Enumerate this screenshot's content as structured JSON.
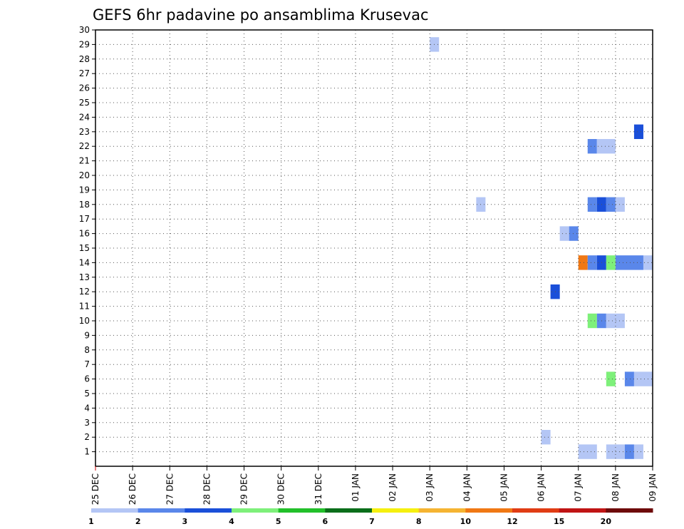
{
  "chart_data": {
    "type": "heatmap",
    "title": "GEFS 6hr padavine po ansamblima Krusevac",
    "xlabel": "",
    "ylabel": "",
    "x_tick_labels": [
      "25 DEC",
      "26 DEC",
      "27 DEC",
      "28 DEC",
      "29 DEC",
      "30 DEC",
      "31 DEC",
      "01 JAN",
      "02 JAN",
      "03 JAN",
      "04 JAN",
      "05 JAN",
      "06 JAN",
      "07 JAN",
      "08 JAN",
      "09 JAN"
    ],
    "y_tick_labels": [
      "1",
      "2",
      "3",
      "4",
      "5",
      "6",
      "7",
      "8",
      "9",
      "10",
      "11",
      "12",
      "13",
      "14",
      "15",
      "16",
      "17",
      "18",
      "19",
      "20",
      "21",
      "22",
      "23",
      "24",
      "25",
      "26",
      "27",
      "28",
      "29",
      "30"
    ],
    "x_range_days": [
      0,
      15
    ],
    "y_range": [
      0,
      30
    ],
    "grid": true,
    "colorbar": {
      "levels": [
        "1",
        "2",
        "3",
        "4",
        "5",
        "6",
        "7",
        "8",
        "10",
        "12",
        "15",
        "20"
      ],
      "colors": [
        "#b4c6f5",
        "#5a87ea",
        "#1a4fd9",
        "#7ef07a",
        "#22c02a",
        "#0a6e1a",
        "#f5f00f",
        "#f5b432",
        "#f07814",
        "#e03c14",
        "#c01414",
        "#6e0a0a"
      ]
    },
    "cells": [
      {
        "member": 29,
        "day_start": 9.0,
        "day_end": 9.25,
        "level": "1"
      },
      {
        "member": 23,
        "day_start": 14.5,
        "day_end": 14.75,
        "level": "3"
      },
      {
        "member": 22,
        "day_start": 13.25,
        "day_end": 13.5,
        "level": "2"
      },
      {
        "member": 22,
        "day_start": 13.5,
        "day_end": 14.0,
        "level": "1"
      },
      {
        "member": 18,
        "day_start": 10.25,
        "day_end": 10.5,
        "level": "1"
      },
      {
        "member": 18,
        "day_start": 13.25,
        "day_end": 13.5,
        "level": "2"
      },
      {
        "member": 18,
        "day_start": 13.5,
        "day_end": 13.75,
        "level": "3"
      },
      {
        "member": 18,
        "day_start": 13.75,
        "day_end": 14.0,
        "level": "2"
      },
      {
        "member": 18,
        "day_start": 14.0,
        "day_end": 14.25,
        "level": "1"
      },
      {
        "member": 16,
        "day_start": 12.5,
        "day_end": 12.75,
        "level": "1"
      },
      {
        "member": 16,
        "day_start": 12.75,
        "day_end": 13.0,
        "level": "2"
      },
      {
        "member": 14,
        "day_start": 13.0,
        "day_end": 13.25,
        "level": "10"
      },
      {
        "member": 14,
        "day_start": 13.25,
        "day_end": 13.5,
        "level": "2"
      },
      {
        "member": 14,
        "day_start": 13.5,
        "day_end": 13.75,
        "level": "3"
      },
      {
        "member": 14,
        "day_start": 13.75,
        "day_end": 14.0,
        "level": "4"
      },
      {
        "member": 14,
        "day_start": 14.0,
        "day_end": 14.75,
        "level": "2"
      },
      {
        "member": 14,
        "day_start": 14.75,
        "day_end": 15.0,
        "level": "1"
      },
      {
        "member": 12,
        "day_start": 12.25,
        "day_end": 12.5,
        "level": "3"
      },
      {
        "member": 10,
        "day_start": 13.25,
        "day_end": 13.5,
        "level": "4"
      },
      {
        "member": 10,
        "day_start": 13.5,
        "day_end": 13.75,
        "level": "2"
      },
      {
        "member": 10,
        "day_start": 13.75,
        "day_end": 14.25,
        "level": "1"
      },
      {
        "member": 6,
        "day_start": 13.75,
        "day_end": 14.0,
        "level": "4"
      },
      {
        "member": 6,
        "day_start": 14.25,
        "day_end": 14.5,
        "level": "2"
      },
      {
        "member": 6,
        "day_start": 14.5,
        "day_end": 15.0,
        "level": "1"
      },
      {
        "member": 2,
        "day_start": 12.0,
        "day_end": 12.25,
        "level": "1"
      },
      {
        "member": 1,
        "day_start": 13.0,
        "day_end": 13.5,
        "level": "1"
      },
      {
        "member": 1,
        "day_start": 13.75,
        "day_end": 14.25,
        "level": "1"
      },
      {
        "member": 1,
        "day_start": 14.25,
        "day_end": 14.5,
        "level": "2"
      },
      {
        "member": 1,
        "day_start": 14.5,
        "day_end": 14.75,
        "level": "1"
      }
    ]
  }
}
